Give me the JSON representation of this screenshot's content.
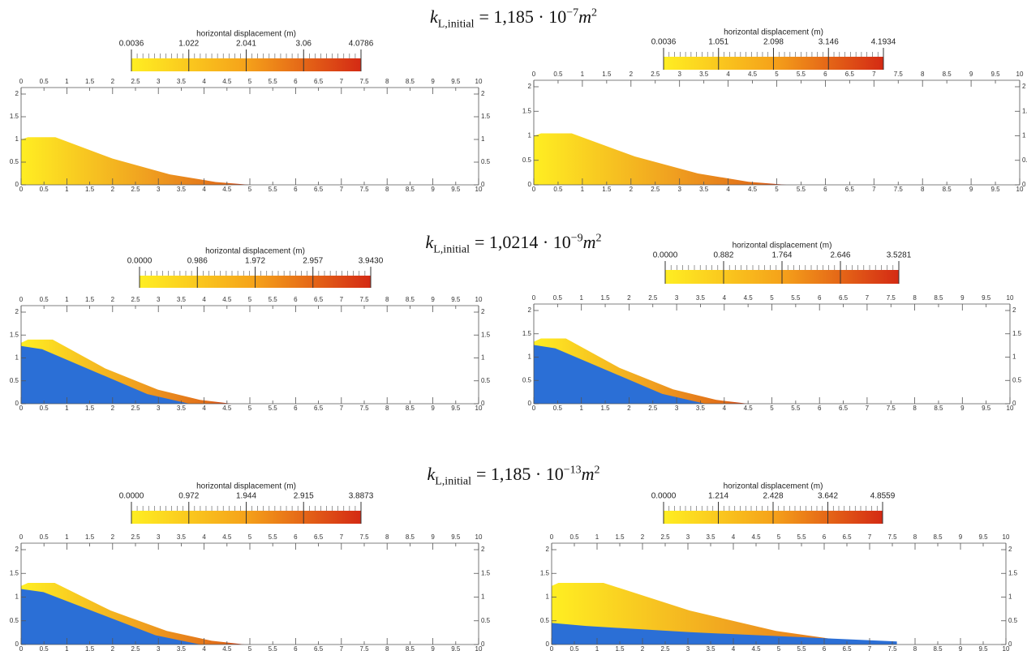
{
  "rows": [
    {
      "heading": {
        "symbol": "k",
        "subscript": "L,initial",
        "equals": "= 1,185 · 10",
        "exponent": "−7",
        "unit": "m",
        "unit_exponent": "2"
      },
      "panels": [
        {
          "colorbar": {
            "title": "horizontal displacement (m)",
            "ticks": [
              0.0036,
              1.022,
              2.041,
              3.06,
              4.0786
            ]
          }
        },
        {
          "colorbar": {
            "title": "horizontal displacement (m)",
            "ticks": [
              0.0036,
              1.051,
              2.098,
              3.146,
              4.1934
            ]
          }
        }
      ]
    },
    {
      "heading": {
        "symbol": "k",
        "subscript": "L,initial",
        "equals": "= 1,0214 · 10",
        "exponent": "−9",
        "unit": "m",
        "unit_exponent": "2"
      },
      "panels": [
        {
          "colorbar": {
            "title": "horizontal displacement (m)",
            "ticks": [
              {
                "value": 0,
                "label": "0.0000"
              },
              0.986,
              1.972,
              2.957,
              {
                "value": 3.943,
                "label": "3.9430"
              }
            ]
          }
        },
        {
          "colorbar": {
            "title": "horizontal displacement (m)",
            "ticks": [
              {
                "value": 0,
                "label": "0.0000"
              },
              0.882,
              1.764,
              2.646,
              3.5281
            ]
          }
        }
      ]
    },
    {
      "heading": {
        "symbol": "k",
        "subscript": "L,initial",
        "equals": "= 1,185 · 10",
        "exponent": "−13",
        "unit": "m",
        "unit_exponent": "2"
      },
      "panels": [
        {
          "colorbar": {
            "title": "horizontal displacement (m)",
            "ticks": [
              {
                "value": 0,
                "label": "0.0000"
              },
              0.972,
              1.944,
              2.915,
              3.8873
            ]
          }
        },
        {
          "colorbar": {
            "title": "horizontal displacement (m)",
            "ticks": [
              {
                "value": 0,
                "label": "0.0000"
              },
              1.214,
              2.428,
              3.642,
              4.8559
            ]
          }
        }
      ]
    }
  ],
  "axes": {
    "xlim": [
      0,
      10
    ],
    "ylim": [
      0,
      2
    ],
    "xticks": [
      0,
      0.5,
      1,
      1.5,
      2,
      2.5,
      3,
      3.5,
      4,
      4.5,
      5,
      5.5,
      6,
      6.5,
      7,
      7.5,
      8,
      8.5,
      9,
      9.5,
      10
    ],
    "yticks": [
      0,
      0.5,
      1,
      1.5,
      2
    ]
  }
}
